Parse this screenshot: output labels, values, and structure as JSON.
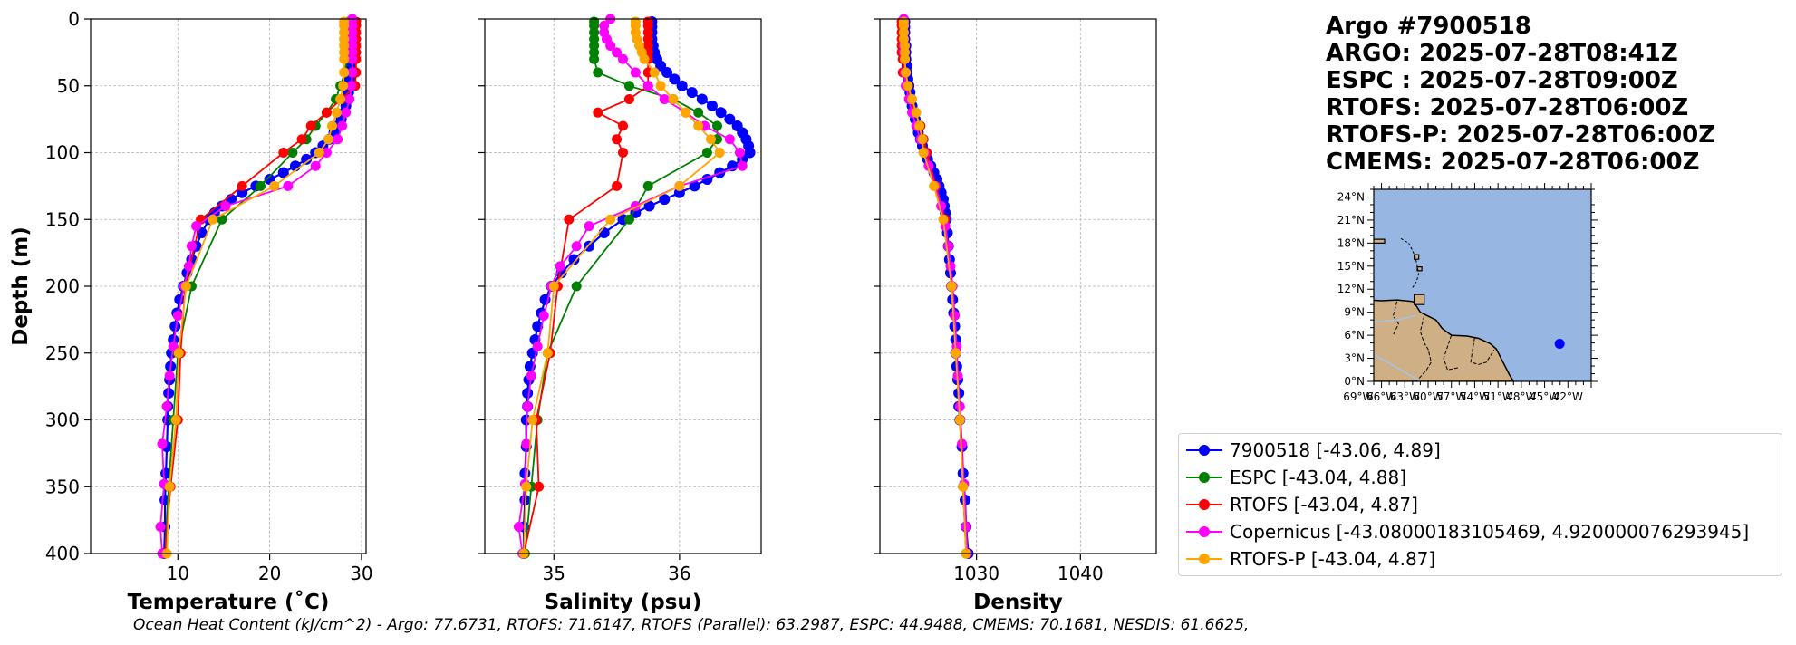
{
  "title_lines": [
    "Argo #7900518",
    "ARGO: 2025-07-28T08:41Z",
    "ESPC : 2025-07-28T09:00Z",
    "RTOFS: 2025-07-28T06:00Z",
    "RTOFS-P: 2025-07-28T06:00Z",
    "CMEMS: 2025-07-28T06:00Z"
  ],
  "footer": "Ocean Heat Content (kJ/cm^2) - Argo: 77.6731,  RTOFS: 71.6147,  RTOFS (Parallel): 63.2987,  ESPC: 44.9488,  CMEMS: 70.1681,  NESDIS: 61.6625,",
  "colors": {
    "argo": "#0000ff",
    "espc": "#008000",
    "rtofs": "#ff0000",
    "copernicus": "#ff00ff",
    "rtofs_p": "#ffa500",
    "ocean": "#97b6e1",
    "land": "#cfaf85"
  },
  "legend": [
    {
      "key": "argo",
      "label": "7900518 [-43.06, 4.89]"
    },
    {
      "key": "espc",
      "label": "ESPC [-43.04, 4.88]"
    },
    {
      "key": "rtofs",
      "label": "RTOFS [-43.04, 4.87]"
    },
    {
      "key": "copernicus",
      "label": "Copernicus [-43.08000183105469, 4.920000076293945]"
    },
    {
      "key": "rtofs_p",
      "label": "RTOFS-P [-43.04, 4.87]"
    }
  ],
  "chart_data": [
    {
      "type": "line",
      "id": "temperature",
      "xlabel": "Temperature (˚C)",
      "ylabel": "Depth (m)",
      "xlim": [
        0.5,
        30.5
      ],
      "ylim": [
        400,
        0
      ],
      "xticks": [
        10,
        20,
        30
      ],
      "yticks": [
        0,
        50,
        100,
        150,
        200,
        250,
        300,
        350,
        400
      ],
      "grid": true,
      "series": [
        {
          "key": "argo",
          "depth": [
            2,
            6,
            10,
            15,
            20,
            25,
            30,
            35,
            40,
            45,
            50,
            55,
            60,
            65,
            70,
            75,
            80,
            85,
            90,
            95,
            100,
            105,
            110,
            115,
            120,
            125,
            130,
            135,
            140,
            145,
            150,
            160,
            170,
            180,
            190,
            200,
            210,
            220,
            230,
            240,
            250,
            260,
            270,
            280,
            290,
            300,
            320,
            340,
            360,
            380,
            400
          ],
          "values": [
            28.8,
            28.8,
            28.8,
            28.8,
            28.8,
            28.8,
            28.8,
            28.8,
            28.8,
            28.7,
            28.7,
            28.6,
            28.5,
            28.3,
            28.1,
            27.8,
            27.4,
            27.0,
            26.5,
            25.8,
            25.0,
            24.0,
            22.8,
            21.5,
            20.0,
            18.5,
            17.0,
            15.8,
            14.8,
            14.0,
            13.4,
            12.6,
            12.0,
            11.5,
            11.0,
            10.6,
            10.2,
            9.9,
            9.7,
            9.5,
            9.3,
            9.2,
            9.1,
            9.0,
            8.9,
            8.9,
            8.8,
            8.7,
            8.6,
            8.6,
            8.5
          ]
        },
        {
          "key": "espc",
          "depth": [
            2,
            5,
            10,
            15,
            20,
            25,
            30,
            40,
            50,
            60,
            70,
            80,
            90,
            100,
            125,
            150,
            200,
            250,
            300,
            350,
            400
          ],
          "values": [
            28.6,
            28.6,
            28.6,
            28.6,
            28.5,
            28.5,
            28.4,
            28.2,
            27.7,
            27.2,
            26.2,
            25.0,
            24.0,
            22.5,
            19.0,
            14.8,
            11.5,
            10.0,
            9.5,
            9.0,
            8.6
          ]
        },
        {
          "key": "rtofs",
          "depth": [
            2,
            5,
            10,
            15,
            20,
            25,
            30,
            40,
            50,
            60,
            70,
            80,
            90,
            100,
            125,
            150,
            200,
            250,
            300,
            350,
            400
          ],
          "values": [
            29.4,
            29.4,
            29.4,
            29.4,
            29.4,
            29.4,
            29.4,
            29.4,
            29.3,
            27.8,
            26.2,
            24.5,
            23.5,
            21.5,
            17.0,
            12.5,
            10.8,
            10.3,
            10.0,
            9.2,
            8.6
          ]
        },
        {
          "key": "copernicus",
          "depth": [
            0,
            5,
            10,
            15,
            20,
            25,
            30,
            40,
            50,
            60,
            70,
            80,
            90,
            100,
            110,
            125,
            140,
            155,
            170,
            185,
            200,
            222,
            245,
            267,
            290,
            318,
            348,
            380,
            400
          ],
          "values": [
            29.0,
            29.0,
            29.0,
            29.0,
            29.0,
            29.0,
            29.0,
            29.0,
            28.9,
            28.7,
            28.3,
            27.9,
            27.4,
            26.2,
            25.0,
            22.0,
            15.2,
            12.0,
            11.5,
            11.2,
            10.7,
            10.0,
            9.5,
            9.1,
            8.8,
            8.3,
            8.5,
            8.1,
            8.3
          ]
        },
        {
          "key": "rtofs_p",
          "depth": [
            2,
            5,
            10,
            15,
            20,
            25,
            30,
            40,
            50,
            60,
            70,
            80,
            90,
            100,
            125,
            150,
            200,
            250,
            300,
            350,
            400
          ],
          "values": [
            28.1,
            28.1,
            28.1,
            28.1,
            28.1,
            28.1,
            28.1,
            28.1,
            28.0,
            27.7,
            27.3,
            26.8,
            26.4,
            25.4,
            20.5,
            13.8,
            10.9,
            10.1,
            9.8,
            9.1,
            8.8
          ]
        }
      ]
    },
    {
      "type": "line",
      "id": "salinity",
      "xlabel": "Salinity (psu)",
      "xlim": [
        34.45,
        36.65
      ],
      "ylim": [
        400,
        0
      ],
      "xticks": [
        35,
        36
      ],
      "yticks": [
        0,
        50,
        100,
        150,
        200,
        250,
        300,
        350,
        400
      ],
      "grid": true,
      "series": [
        {
          "key": "argo",
          "depth": [
            2,
            6,
            10,
            15,
            20,
            25,
            30,
            35,
            40,
            45,
            50,
            55,
            60,
            65,
            70,
            75,
            80,
            85,
            90,
            95,
            100,
            105,
            110,
            115,
            120,
            125,
            130,
            135,
            140,
            145,
            150,
            160,
            170,
            180,
            190,
            200,
            210,
            220,
            230,
            240,
            250,
            260,
            270,
            280,
            290,
            300,
            320,
            340,
            360,
            380,
            400
          ],
          "values": [
            35.78,
            35.78,
            35.78,
            35.78,
            35.79,
            35.8,
            35.82,
            35.85,
            35.9,
            35.96,
            36.02,
            36.1,
            36.18,
            36.26,
            36.33,
            36.4,
            36.46,
            36.5,
            36.53,
            36.55,
            36.56,
            36.5,
            36.42,
            36.32,
            36.22,
            36.12,
            36.0,
            35.88,
            35.76,
            35.65,
            35.55,
            35.4,
            35.28,
            35.16,
            35.06,
            34.98,
            34.93,
            34.9,
            34.87,
            34.85,
            34.83,
            34.81,
            34.8,
            34.79,
            34.79,
            34.78,
            34.78,
            34.77,
            34.77,
            34.76,
            34.76
          ]
        },
        {
          "key": "espc",
          "depth": [
            2,
            5,
            10,
            15,
            20,
            25,
            30,
            40,
            50,
            60,
            70,
            80,
            90,
            100,
            125,
            150,
            200,
            250,
            300,
            350,
            400
          ],
          "values": [
            35.32,
            35.32,
            35.32,
            35.32,
            35.32,
            35.32,
            35.32,
            35.35,
            35.6,
            35.95,
            36.15,
            36.3,
            36.3,
            36.22,
            35.75,
            35.6,
            35.18,
            34.95,
            34.87,
            34.82,
            34.77
          ]
        },
        {
          "key": "rtofs",
          "depth": [
            2,
            5,
            10,
            15,
            20,
            25,
            30,
            40,
            50,
            60,
            70,
            80,
            90,
            100,
            125,
            150,
            200,
            250,
            300,
            350,
            400
          ],
          "values": [
            35.75,
            35.75,
            35.75,
            35.75,
            35.75,
            35.75,
            35.75,
            35.75,
            35.75,
            35.6,
            35.35,
            35.55,
            35.5,
            35.55,
            35.5,
            35.12,
            35.03,
            34.97,
            34.86,
            34.88,
            34.76
          ]
        },
        {
          "key": "copernicus",
          "depth": [
            0,
            5,
            10,
            15,
            20,
            25,
            30,
            40,
            50,
            60,
            70,
            80,
            90,
            100,
            110,
            125,
            140,
            155,
            170,
            185,
            200,
            222,
            245,
            267,
            290,
            318,
            348,
            380,
            400
          ],
          "values": [
            35.45,
            35.4,
            35.4,
            35.42,
            35.45,
            35.5,
            35.55,
            35.65,
            35.75,
            35.88,
            36.05,
            36.2,
            36.4,
            36.48,
            36.5,
            36.0,
            35.65,
            35.28,
            35.18,
            35.05,
            34.98,
            34.92,
            34.87,
            34.82,
            34.79,
            34.78,
            34.77,
            34.72,
            34.75
          ]
        },
        {
          "key": "rtofs_p",
          "depth": [
            2,
            5,
            10,
            15,
            20,
            25,
            30,
            40,
            50,
            60,
            70,
            80,
            90,
            100,
            125,
            150,
            200,
            250,
            300,
            350,
            400
          ],
          "values": [
            35.65,
            35.65,
            35.65,
            35.66,
            35.68,
            35.7,
            35.72,
            35.8,
            35.85,
            35.95,
            36.05,
            36.15,
            36.25,
            36.32,
            36.0,
            35.45,
            35.0,
            34.95,
            34.83,
            34.78,
            34.76
          ]
        }
      ]
    },
    {
      "type": "line",
      "id": "density",
      "xlabel": "Density",
      "xlim": [
        1020.7,
        1047.3
      ],
      "ylim": [
        400,
        0
      ],
      "xticks": [
        1030,
        1040
      ],
      "yticks": [
        0,
        50,
        100,
        150,
        200,
        250,
        300,
        350,
        400
      ],
      "grid": true,
      "series": [
        {
          "key": "argo",
          "depth": [
            2,
            6,
            10,
            15,
            20,
            25,
            30,
            35,
            40,
            45,
            50,
            55,
            60,
            65,
            70,
            75,
            80,
            85,
            90,
            95,
            100,
            105,
            110,
            115,
            120,
            125,
            130,
            135,
            140,
            145,
            150,
            160,
            170,
            180,
            190,
            200,
            210,
            220,
            230,
            240,
            250,
            260,
            270,
            280,
            290,
            300,
            320,
            340,
            360,
            380,
            400
          ],
          "values": [
            1023.1,
            1023.1,
            1023.1,
            1023.1,
            1023.2,
            1023.2,
            1023.2,
            1023.3,
            1023.3,
            1023.4,
            1023.5,
            1023.6,
            1023.7,
            1023.8,
            1023.9,
            1024.1,
            1024.3,
            1024.4,
            1024.6,
            1024.8,
            1025.0,
            1025.3,
            1025.6,
            1025.9,
            1026.2,
            1026.4,
            1026.6,
            1026.8,
            1026.9,
            1027.0,
            1027.1,
            1027.2,
            1027.3,
            1027.4,
            1027.5,
            1027.6,
            1027.7,
            1027.8,
            1027.9,
            1028.0,
            1028.0,
            1028.1,
            1028.2,
            1028.3,
            1028.3,
            1028.4,
            1028.6,
            1028.7,
            1028.9,
            1029.0,
            1029.2
          ]
        },
        {
          "key": "espc",
          "depth": [
            2,
            5,
            10,
            15,
            20,
            25,
            30,
            40,
            50,
            60,
            70,
            80,
            90,
            100,
            125,
            150,
            200,
            250,
            300,
            350,
            400
          ],
          "values": [
            1022.9,
            1022.9,
            1022.9,
            1022.9,
            1023.0,
            1023.0,
            1023.0,
            1023.1,
            1023.3,
            1023.7,
            1024.1,
            1024.6,
            1024.9,
            1025.2,
            1026.0,
            1026.9,
            1027.6,
            1028.0,
            1028.4,
            1028.7,
            1029.0
          ]
        },
        {
          "key": "rtofs",
          "depth": [
            2,
            5,
            10,
            15,
            20,
            25,
            30,
            40,
            50,
            60,
            70,
            80,
            90,
            100,
            125,
            150,
            200,
            250,
            300,
            350,
            400
          ],
          "values": [
            1022.8,
            1022.8,
            1022.8,
            1022.8,
            1022.8,
            1022.8,
            1022.9,
            1022.9,
            1023.2,
            1023.6,
            1024.1,
            1024.6,
            1024.9,
            1025.2,
            1026.1,
            1027.0,
            1027.6,
            1028.0,
            1028.4,
            1028.7,
            1029.0
          ]
        },
        {
          "key": "copernicus",
          "depth": [
            0,
            5,
            10,
            15,
            20,
            25,
            30,
            40,
            50,
            60,
            70,
            80,
            90,
            100,
            110,
            125,
            140,
            155,
            170,
            185,
            200,
            222,
            245,
            267,
            290,
            318,
            348,
            380,
            400
          ],
          "values": [
            1023.0,
            1023.0,
            1023.0,
            1023.0,
            1023.0,
            1023.0,
            1023.1,
            1023.1,
            1023.2,
            1023.5,
            1023.8,
            1024.2,
            1024.6,
            1025.0,
            1025.4,
            1026.0,
            1026.6,
            1027.0,
            1027.3,
            1027.5,
            1027.7,
            1027.9,
            1028.1,
            1028.2,
            1028.4,
            1028.6,
            1028.8,
            1029.0,
            1029.1
          ]
        },
        {
          "key": "rtofs_p",
          "depth": [
            2,
            5,
            10,
            15,
            20,
            25,
            30,
            40,
            50,
            60,
            70,
            80,
            90,
            100,
            125,
            150,
            200,
            250,
            300,
            350,
            400
          ],
          "values": [
            1023.0,
            1023.0,
            1023.0,
            1023.0,
            1023.1,
            1023.1,
            1023.1,
            1023.2,
            1023.4,
            1023.8,
            1024.2,
            1024.5,
            1024.8,
            1024.9,
            1025.9,
            1026.8,
            1027.6,
            1028.0,
            1028.4,
            1028.7,
            1029.0
          ]
        }
      ]
    }
  ],
  "map": {
    "lat_labels": [
      "0°N",
      "3°N",
      "6°N",
      "9°N",
      "12°N",
      "15°N",
      "18°N",
      "21°N",
      "24°N"
    ],
    "lat_values": [
      0,
      3,
      6,
      9,
      12,
      15,
      18,
      21,
      24
    ],
    "lon_labels": [
      "69°W",
      "66°W",
      "63°W",
      "60°W",
      "57°W",
      "54°W",
      "51°W",
      "48°W",
      "45°W",
      "42°W"
    ],
    "lon_values": [
      -69,
      -66,
      -63,
      -60,
      -57,
      -54,
      -51,
      -48,
      -45,
      -42
    ],
    "lon_range": [
      -67,
      -39
    ],
    "lat_range": [
      0,
      25
    ],
    "argo_position": [
      -43.06,
      4.89
    ]
  }
}
